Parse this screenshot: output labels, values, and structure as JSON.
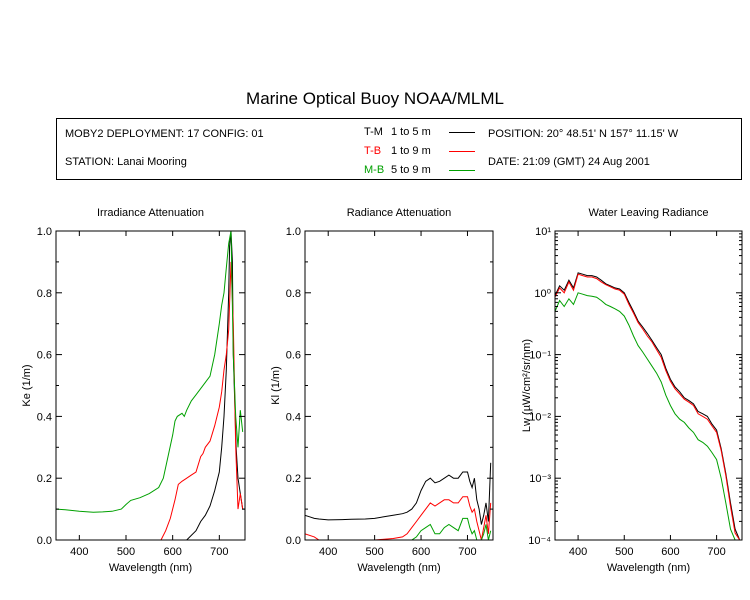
{
  "title": "Marine Optical Buoy NOAA/MLML",
  "info": {
    "deployment": "MOBY2 DEPLOYMENT: 17 CONFIG: 01",
    "station": "STATION: Lanai Mooring",
    "position": "POSITION: 20° 48.51' N   157° 11.15' W",
    "date": "DATE: 21:09 (GMT) 24 Aug 2001",
    "legend": [
      {
        "code": "T-M",
        "range": "1 to 5  m",
        "color": "#000000"
      },
      {
        "code": "T-B",
        "range": "1 to 9  m",
        "color": "#ff0000"
      },
      {
        "code": "M-B",
        "range": "5 to 9  m",
        "color": "#00a000"
      }
    ]
  },
  "chart_data": [
    {
      "type": "line",
      "title": "Irradiance Attenuation",
      "xlabel": "Wavelength (nm)",
      "ylabel": "Ke  (1/m)",
      "xlim": [
        350,
        755
      ],
      "ylim": [
        0,
        1.0
      ],
      "xticks": [
        400,
        500,
        600,
        700
      ],
      "yticks": [
        0.0,
        0.2,
        0.4,
        0.6,
        0.8,
        1.0
      ],
      "ytick_labels": [
        "0.0",
        "0.2",
        "0.4",
        "0.6",
        "0.8",
        "1.0"
      ],
      "series": [
        {
          "name": "T-M",
          "color": "#000000",
          "x": [
            630,
            650,
            660,
            670,
            680,
            690,
            700,
            705,
            710,
            715,
            720,
            722,
            725,
            728,
            730,
            733,
            736,
            740,
            745,
            750,
            755
          ],
          "y": [
            0.0,
            0.03,
            0.06,
            0.08,
            0.11,
            0.16,
            0.22,
            0.3,
            0.4,
            0.55,
            0.8,
            0.95,
            1.0,
            0.9,
            0.6,
            0.45,
            0.3,
            0.2,
            0.15,
            0.1,
            0.1
          ]
        },
        {
          "name": "T-B",
          "color": "#ff0000",
          "x": [
            575,
            585,
            595,
            605,
            612,
            620,
            630,
            640,
            650,
            660,
            665,
            670,
            680,
            690,
            700,
            705,
            710,
            715,
            720,
            725,
            730,
            735,
            740,
            745,
            750
          ],
          "y": [
            0.0,
            0.03,
            0.07,
            0.13,
            0.18,
            0.19,
            0.2,
            0.21,
            0.22,
            0.27,
            0.28,
            0.3,
            0.32,
            0.37,
            0.43,
            0.48,
            0.55,
            0.6,
            0.68,
            0.9,
            0.7,
            0.3,
            0.1,
            0.15,
            0.1
          ]
        },
        {
          "name": "M-B",
          "color": "#00a000",
          "x": [
            350,
            370,
            400,
            430,
            450,
            470,
            490,
            500,
            510,
            530,
            550,
            570,
            580,
            590,
            600,
            605,
            610,
            620,
            625,
            630,
            640,
            650,
            660,
            670,
            680,
            690,
            700,
            705,
            710,
            715,
            720,
            725,
            730,
            735,
            740,
            745,
            750
          ],
          "y": [
            0.1,
            0.098,
            0.093,
            0.09,
            0.091,
            0.093,
            0.1,
            0.115,
            0.128,
            0.137,
            0.15,
            0.17,
            0.2,
            0.27,
            0.34,
            0.385,
            0.4,
            0.41,
            0.4,
            0.42,
            0.45,
            0.47,
            0.49,
            0.51,
            0.53,
            0.6,
            0.7,
            0.76,
            0.8,
            0.88,
            0.96,
            1.0,
            0.6,
            0.4,
            0.3,
            0.42,
            0.35
          ]
        }
      ]
    },
    {
      "type": "line",
      "title": "Radiance Attenuation",
      "xlabel": "Wavelength (nm)",
      "ylabel": "Kl  (1/m)",
      "xlim": [
        350,
        755
      ],
      "ylim": [
        0,
        1.0
      ],
      "xticks": [
        400,
        500,
        600,
        700
      ],
      "yticks": [
        0.0,
        0.2,
        0.4,
        0.6,
        0.8,
        1.0
      ],
      "ytick_labels": [
        "0.0",
        "0.2",
        "0.4",
        "0.6",
        "0.8",
        "1.0"
      ],
      "series": [
        {
          "name": "T-M",
          "color": "#000000",
          "x": [
            350,
            360,
            370,
            380,
            400,
            430,
            450,
            480,
            500,
            520,
            540,
            560,
            570,
            580,
            590,
            600,
            610,
            620,
            630,
            640,
            650,
            660,
            670,
            680,
            690,
            700,
            705,
            710,
            715,
            720,
            725,
            730,
            735,
            740,
            745,
            750
          ],
          "y": [
            0.08,
            0.075,
            0.07,
            0.068,
            0.065,
            0.066,
            0.067,
            0.068,
            0.07,
            0.075,
            0.08,
            0.085,
            0.09,
            0.1,
            0.12,
            0.16,
            0.19,
            0.2,
            0.185,
            0.19,
            0.2,
            0.21,
            0.2,
            0.2,
            0.22,
            0.22,
            0.19,
            0.17,
            0.2,
            0.13,
            0.1,
            0.05,
            0.08,
            0.12,
            0.06,
            0.25
          ]
        },
        {
          "name": "T-B",
          "color": "#ff0000",
          "x": [
            350,
            370,
            380,
            390,
            500,
            540,
            560,
            570,
            580,
            590,
            600,
            610,
            620,
            630,
            640,
            650,
            660,
            670,
            680,
            690,
            700,
            705,
            710,
            715,
            720,
            725,
            730,
            735,
            740,
            745,
            750
          ],
          "y": [
            0.02,
            0.01,
            0.0,
            0.0,
            0.0,
            0.005,
            0.01,
            0.02,
            0.04,
            0.06,
            0.08,
            0.1,
            0.12,
            0.11,
            0.12,
            0.13,
            0.13,
            0.12,
            0.12,
            0.14,
            0.14,
            0.11,
            0.09,
            0.1,
            0.06,
            0.03,
            0.0,
            0.04,
            0.08,
            0.02,
            0.12
          ]
        },
        {
          "name": "M-B",
          "color": "#00a000",
          "x": [
            580,
            590,
            600,
            610,
            620,
            630,
            640,
            650,
            660,
            670,
            680,
            690,
            700,
            705,
            710,
            715,
            720,
            725,
            730,
            735,
            740,
            745,
            750
          ],
          "y": [
            0.0,
            0.01,
            0.03,
            0.04,
            0.05,
            0.02,
            0.02,
            0.04,
            0.05,
            0.04,
            0.03,
            0.07,
            0.07,
            0.04,
            0.02,
            0.03,
            0.0,
            0.0,
            0.0,
            0.02,
            0.05,
            0.0,
            0.03
          ]
        }
      ]
    },
    {
      "type": "line",
      "title": "Water Leaving Radiance",
      "xlabel": "Wavelength (nm)",
      "ylabel": "Lw  (µW/cm²/sr/nm)",
      "yscale": "log",
      "xlim": [
        350,
        755
      ],
      "ylim": [
        0.0001,
        10
      ],
      "xticks": [
        400,
        500,
        600,
        700
      ],
      "yticks": [
        0.0001,
        0.001,
        0.01,
        0.1,
        1,
        10
      ],
      "ytick_labels": [
        "10⁻⁴",
        "10⁻³",
        "10⁻²",
        "10⁻¹",
        "10⁰",
        "10¹"
      ],
      "series": [
        {
          "name": "T-M",
          "color": "#000000",
          "x": [
            350,
            360,
            370,
            380,
            390,
            400,
            410,
            420,
            430,
            440,
            450,
            460,
            470,
            480,
            490,
            500,
            510,
            520,
            530,
            540,
            550,
            560,
            570,
            580,
            590,
            600,
            610,
            620,
            630,
            640,
            650,
            660,
            670,
            680,
            690,
            700,
            710,
            720,
            730,
            740,
            750
          ],
          "y": [
            0.9,
            1.3,
            1.1,
            1.6,
            1.2,
            2.1,
            2.0,
            1.9,
            1.9,
            1.8,
            1.6,
            1.4,
            1.3,
            1.2,
            1.15,
            1.0,
            0.7,
            0.5,
            0.35,
            0.28,
            0.22,
            0.17,
            0.13,
            0.1,
            0.06,
            0.04,
            0.03,
            0.025,
            0.02,
            0.018,
            0.016,
            0.012,
            0.011,
            0.01,
            0.0075,
            0.006,
            0.003,
            0.0012,
            0.0004,
            0.00015,
            0.0001
          ]
        },
        {
          "name": "T-B",
          "color": "#ff0000",
          "x": [
            350,
            360,
            370,
            380,
            390,
            400,
            410,
            420,
            430,
            440,
            450,
            460,
            470,
            480,
            490,
            500,
            510,
            520,
            530,
            540,
            550,
            560,
            570,
            580,
            590,
            600,
            610,
            620,
            630,
            640,
            650,
            660,
            670,
            680,
            690,
            700,
            710,
            720,
            730,
            740,
            750
          ],
          "y": [
            0.85,
            1.2,
            1.0,
            1.5,
            1.1,
            2.0,
            1.9,
            1.8,
            1.8,
            1.7,
            1.5,
            1.35,
            1.25,
            1.15,
            1.1,
            0.95,
            0.65,
            0.47,
            0.33,
            0.26,
            0.2,
            0.16,
            0.12,
            0.09,
            0.055,
            0.037,
            0.028,
            0.023,
            0.019,
            0.017,
            0.015,
            0.011,
            0.01,
            0.009,
            0.007,
            0.0055,
            0.0028,
            0.0011,
            0.00035,
            0.00013,
            0.0001
          ]
        },
        {
          "name": "M-B",
          "color": "#00a000",
          "x": [
            350,
            360,
            370,
            380,
            390,
            400,
            410,
            420,
            430,
            440,
            450,
            460,
            470,
            480,
            490,
            500,
            510,
            520,
            530,
            540,
            550,
            560,
            570,
            580,
            590,
            600,
            610,
            620,
            630,
            640,
            650,
            660,
            670,
            680,
            690,
            700,
            710,
            720,
            730,
            740,
            750
          ],
          "y": [
            0.5,
            0.75,
            0.6,
            0.8,
            0.65,
            1.0,
            0.95,
            0.9,
            0.88,
            0.85,
            0.75,
            0.65,
            0.6,
            0.55,
            0.5,
            0.42,
            0.3,
            0.2,
            0.14,
            0.11,
            0.085,
            0.065,
            0.05,
            0.036,
            0.022,
            0.015,
            0.011,
            0.009,
            0.008,
            0.0065,
            0.0055,
            0.0042,
            0.0038,
            0.0033,
            0.0026,
            0.002,
            0.001,
            0.0004,
            0.00015,
            0.0001,
            0.0001
          ]
        }
      ]
    }
  ]
}
